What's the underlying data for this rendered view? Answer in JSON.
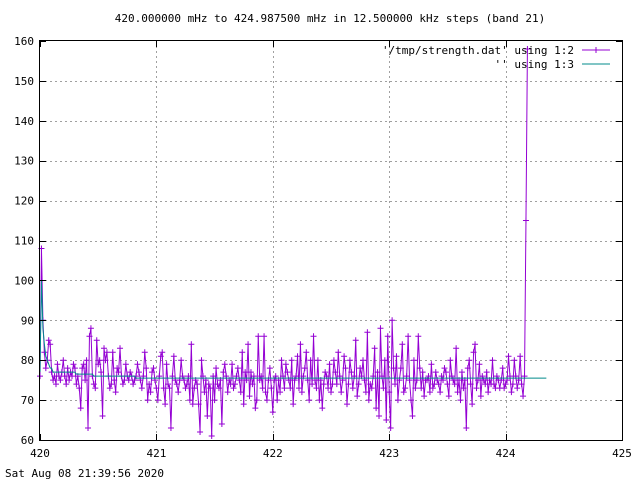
{
  "chart_data": {
    "type": "line",
    "title": "420.000000 mHz to 424.987500 mHz in 12.500000 kHz steps (band 21)",
    "xlabel": "",
    "ylabel": "",
    "xlim": [
      420,
      425
    ],
    "ylim": [
      60,
      160
    ],
    "x_ticks": [
      "420",
      "421",
      "422",
      "423",
      "424",
      "425"
    ],
    "y_ticks": [
      "60",
      "70",
      "80",
      "90",
      "100",
      "110",
      "120",
      "130",
      "140",
      "150",
      "160"
    ],
    "grid": true,
    "legend_position": "top-right",
    "series": [
      {
        "name": "'/tmp/strength.dat' using 1:2",
        "style": "linespoints",
        "color": "#9400d3",
        "x_start": 420.0,
        "x_step": 0.0125,
        "values": [
          76,
          108,
          90,
          82,
          78,
          80,
          85,
          84,
          77,
          75,
          76,
          74,
          79,
          76,
          75,
          77,
          80,
          76,
          74,
          78,
          75,
          77,
          76,
          79,
          78,
          74,
          76,
          73,
          68,
          78,
          79,
          75,
          80,
          63,
          86,
          88,
          76,
          74,
          73,
          85,
          79,
          80,
          77,
          66,
          83,
          80,
          82,
          76,
          73,
          74,
          82,
          75,
          72,
          78,
          77,
          83,
          76,
          74,
          75,
          79,
          76,
          75,
          77,
          76,
          74,
          75,
          76,
          79,
          77,
          75,
          73,
          76,
          82,
          78,
          70,
          74,
          72,
          77,
          78,
          75,
          73,
          70,
          76,
          81,
          82,
          73,
          69,
          79,
          74,
          73,
          63,
          76,
          81,
          75,
          74,
          72,
          75,
          80,
          76,
          75,
          73,
          74,
          76,
          70,
          84,
          69,
          73,
          75,
          74,
          69,
          62,
          80,
          76,
          72,
          75,
          66,
          74,
          73,
          61,
          76,
          70,
          78,
          74,
          73,
          75,
          64,
          77,
          79,
          76,
          72,
          75,
          74,
          79,
          73,
          74,
          76,
          78,
          75,
          72,
          82,
          69,
          77,
          75,
          84,
          71,
          77,
          74,
          76,
          68,
          70,
          86,
          75,
          76,
          73,
          86,
          72,
          70,
          75,
          78,
          73,
          67,
          75,
          76,
          70,
          75,
          72,
          80,
          76,
          73,
          79,
          77,
          75,
          73,
          80,
          69,
          75,
          76,
          81,
          73,
          84,
          72,
          76,
          78,
          82,
          75,
          70,
          80,
          74,
          86,
          75,
          73,
          80,
          70,
          75,
          68,
          74,
          77,
          76,
          73,
          79,
          72,
          74,
          80,
          77,
          74,
          82,
          76,
          72,
          75,
          81,
          78,
          69,
          74,
          80,
          77,
          73,
          76,
          85,
          71,
          74,
          78,
          76,
          80,
          75,
          72,
          87,
          70,
          74,
          73,
          76,
          83,
          68,
          77,
          66,
          88,
          76,
          73,
          80,
          65,
          86,
          72,
          63,
          90,
          78,
          74,
          81,
          70,
          75,
          78,
          84,
          72,
          73,
          76,
          86,
          75,
          70,
          66,
          80,
          73,
          75,
          86,
          78,
          73,
          77,
          71,
          75,
          75,
          76,
          72,
          79,
          73,
          74,
          77,
          75,
          74,
          72,
          76,
          75,
          78,
          77,
          74,
          71,
          80,
          76,
          75,
          74,
          83,
          72,
          75,
          70,
          77,
          73,
          75,
          63,
          78,
          80,
          74,
          69,
          82,
          84,
          73,
          75,
          79,
          71,
          76,
          75,
          74,
          77,
          72,
          75,
          74,
          80,
          74,
          73,
          76,
          75,
          73,
          75,
          78,
          73,
          74,
          75,
          81,
          76,
          72,
          74,
          80,
          76,
          73,
          75,
          81,
          74,
          71,
          76,
          115,
          158
        ]
      },
      {
        "name": "'' using 1:3",
        "style": "lines",
        "color": "#008b8b",
        "x_start": 420.0,
        "x_step": 0.0125,
        "values": [
          77,
          100,
          88,
          84,
          81,
          80,
          79,
          78,
          78,
          77,
          77,
          77,
          77,
          77,
          77,
          77,
          77,
          77,
          77,
          77,
          77,
          77,
          77,
          77,
          77,
          76.5,
          76.5,
          76.5,
          76.5,
          76.5,
          76.5,
          76.5,
          76.5,
          76.5,
          76.5,
          76.5,
          76.5,
          76,
          76,
          76,
          76,
          76,
          76,
          76,
          76,
          76,
          76,
          76,
          76,
          76,
          76,
          76,
          76,
          76,
          76,
          76,
          76,
          76,
          76,
          76,
          76,
          76,
          76,
          76,
          76,
          76,
          75.5,
          75.5,
          75.5,
          75.5,
          75.5,
          75.5,
          75.5,
          75.5,
          75.5,
          75.5,
          75.5,
          75.5,
          75.5,
          75.5,
          75.5,
          75.5,
          75.5,
          75.5,
          75.5,
          75.5,
          75.5,
          75.5,
          75.5,
          75.5,
          75.5,
          75.5,
          75.5,
          75.5,
          75.5,
          75.5,
          75.5,
          75.5,
          75.5,
          75.5,
          75.5,
          75.5,
          75.5,
          75.5,
          75.5,
          75.5,
          75.5,
          75.5,
          75.5,
          75.5,
          75.5,
          75.5,
          75.5,
          75.5,
          75.5,
          75.5,
          75.5,
          75.5,
          75.5,
          75.5,
          75.5,
          75.5,
          75.5,
          75.5,
          75.5,
          75.5,
          75.5,
          75.5,
          75.5,
          75.5,
          75.5,
          75.5,
          75.5,
          75.5,
          75.5,
          75.5,
          75.5,
          75.5,
          75.5,
          75.5,
          75.5,
          75.5,
          75.5,
          75.5,
          75.5,
          75.5,
          75.5,
          75.5,
          75.5,
          75.5,
          75.5,
          75.5,
          75.5,
          75.5,
          75.5,
          75.5,
          75.5,
          75.5,
          75.5,
          75.5,
          75.5,
          75.5,
          75.5,
          75.5,
          75.5,
          75.5,
          75.5,
          75.5,
          75.5,
          75.5,
          75.5,
          75.5,
          75.5,
          75.5,
          75.5,
          75.5,
          75.5,
          75.5,
          75.5,
          75.5,
          75.5,
          75.5,
          75.5,
          75.5,
          75.5,
          75.5,
          75.5,
          75.5,
          75.5,
          75.5,
          75.5,
          75.5,
          75.5,
          75.5,
          75.5,
          75.5,
          75.5,
          75.5,
          75.5,
          75.5,
          75.5,
          75.5,
          75.5,
          75.5,
          75.5,
          75.5,
          75.5,
          75.5,
          75.5,
          75.5,
          75.5,
          75.5,
          75.5,
          75.5,
          75.5,
          75.5,
          75.5,
          75.5,
          75.5,
          75.5,
          75.5,
          75.5,
          75.5,
          75.5,
          75.5,
          75.5,
          75.5,
          75.5,
          75.5,
          75.5,
          75.5,
          75.5,
          75.5,
          75.5,
          75.5,
          75.5,
          75.5,
          75.5,
          75.5,
          75.5,
          75.5,
          75.5,
          75.5,
          75.5,
          75.5,
          75.5,
          75.5,
          75.5,
          75.5,
          75.5,
          75.5,
          75.5,
          75.5,
          75.5,
          75.5,
          75.5,
          75.5,
          75.5,
          75.5,
          75.5,
          75.5,
          75.5,
          75.5,
          75.5,
          75.5,
          75.5,
          75.5,
          75.5,
          75.5,
          75.5,
          75.5,
          75.5,
          75.5,
          75.5,
          75.5,
          75.5,
          75.5,
          75.5,
          75.5,
          75.5,
          75.5,
          75.5,
          75.5,
          75.5,
          75.5,
          75.5,
          75.5,
          75.5,
          75.5,
          75.5,
          75.5,
          75.5,
          75.5,
          75.5,
          75.5,
          75.5,
          75.5,
          75.5,
          75.5,
          75.5,
          75.5,
          75.5,
          75.5,
          75.5,
          75.5,
          75.5,
          75.5,
          75.5,
          75.5,
          75.5,
          75.5,
          75.5,
          75.5,
          75.5,
          75.5,
          75.5,
          75.5,
          75.5,
          75.5,
          75.5,
          75.5,
          75.5,
          75.5,
          75.5,
          75.5,
          75.5,
          75.5,
          75.5,
          75.5,
          75.5,
          75.5,
          75.5,
          75.5,
          75.5,
          75.5,
          75.5,
          75.5,
          75.5,
          75.5,
          75.5,
          75.5,
          75.5,
          75.5,
          75.5,
          75.5,
          75.5,
          75.5,
          75.5,
          75.5
        ]
      }
    ]
  },
  "footer": {
    "timestamp": "Sat Aug 08 21:39:56 2020"
  }
}
